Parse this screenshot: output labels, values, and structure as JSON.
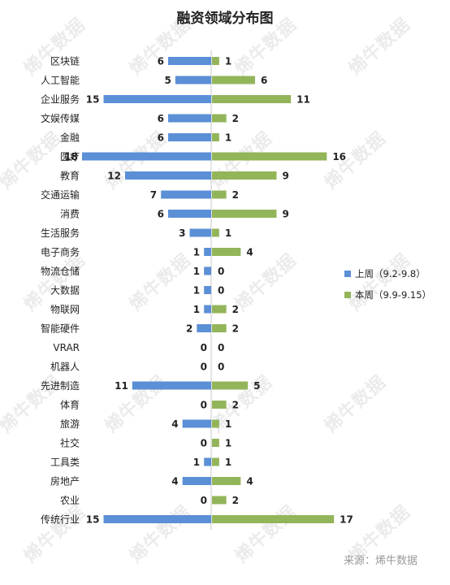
{
  "watermark": "烯牛数据",
  "source": "来源：烯牛数据",
  "colors": {
    "last_week": "#5b8fd6",
    "this_week": "#93b55a",
    "text": "#222222",
    "source": "#9a9a9a",
    "axis": "#c8c8c8"
  },
  "chart_data": {
    "type": "bar",
    "orientation": "horizontal-diverging",
    "title": "融资领域分布图",
    "categories": [
      "区块链",
      "人工智能",
      "企业服务",
      "文娱传媒",
      "金融",
      "医疗",
      "教育",
      "交通运输",
      "消费",
      "生活服务",
      "电子商务",
      "物流仓储",
      "大数据",
      "物联网",
      "智能硬件",
      "VRAR",
      "机器人",
      "先进制造",
      "体育",
      "旅游",
      "社交",
      "工具类",
      "房地产",
      "农业",
      "传统行业"
    ],
    "series": [
      {
        "name": "上周（9.2-9.8）",
        "direction": "left",
        "values": [
          6,
          5,
          15,
          6,
          6,
          18,
          12,
          7,
          6,
          3,
          1,
          1,
          1,
          1,
          2,
          0,
          0,
          11,
          0,
          4,
          0,
          1,
          4,
          0,
          15
        ]
      },
      {
        "name": "本周（9.9-9.15）",
        "direction": "right",
        "values": [
          1,
          6,
          11,
          2,
          1,
          16,
          9,
          2,
          9,
          1,
          4,
          0,
          0,
          2,
          2,
          0,
          0,
          5,
          2,
          1,
          1,
          1,
          4,
          2,
          17
        ]
      }
    ],
    "xlim": [
      -18,
      18
    ],
    "legend_position": "right",
    "grid": false
  }
}
